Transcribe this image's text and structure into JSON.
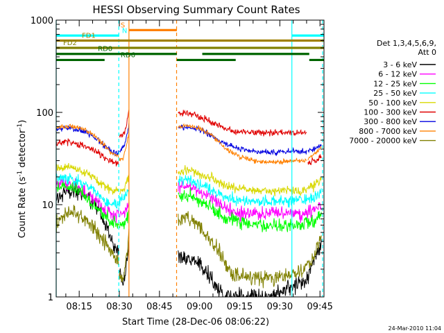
{
  "chart_data": {
    "type": "line",
    "title": "HESSI Observing Summary Count Rates",
    "xlabel": "Start Time (28-Dec-06 08:06:22)",
    "ylabel_parts": [
      "Count Rate (s",
      "-1",
      " detector",
      "-1",
      ")"
    ],
    "yscale": "log",
    "ylim": [
      1,
      1000
    ],
    "xlim_minutes": [
      486.4,
      586.5
    ],
    "x_ticks": [
      {
        "label": "08:15",
        "min": 495
      },
      {
        "label": "08:30",
        "min": 510
      },
      {
        "label": "08:45",
        "min": 525
      },
      {
        "label": "09:00",
        "min": 540
      },
      {
        "label": "09:15",
        "min": 555
      },
      {
        "label": "09:30",
        "min": 570
      },
      {
        "label": "09:45",
        "min": 585
      }
    ],
    "y_ticks": [
      {
        "label": "1",
        "value": 1
      },
      {
        "label": "10",
        "value": 10
      },
      {
        "label": "100",
        "value": 100
      },
      {
        "label": "1000",
        "value": 1000
      }
    ],
    "timestamp": "24-Mar-2010 11:04",
    "legend": {
      "placement": "right",
      "header": [
        "Det 1,3,4,5,6,9,",
        "Att 0"
      ],
      "entries": [
        {
          "label": "3 - 6 keV",
          "color": "#000000"
        },
        {
          "label": "6 - 12 keV",
          "color": "#ff00ff"
        },
        {
          "label": "12 - 25 keV",
          "color": "#00ff00"
        },
        {
          "label": "25 - 50 keV",
          "color": "#00ffff"
        },
        {
          "label": "50 - 100 keV",
          "color": "#d8d800"
        },
        {
          "label": "100 - 300 keV",
          "color": "#e00000"
        },
        {
          "label": "300 - 800 keV",
          "color": "#0000e0"
        },
        {
          "label": "800 - 7000 keV",
          "color": "#ff8000"
        },
        {
          "label": "7000 - 20000 keV",
          "color": "#808000"
        }
      ]
    },
    "flag_bars": [
      {
        "label": "N",
        "color": "#00ffff",
        "y": 680,
        "segments": [
          [
            486.4,
            510
          ],
          [
            574.5,
            586.5
          ]
        ],
        "label_at": 511
      },
      {
        "label": "S",
        "color": "#ff8000",
        "y": 780,
        "segments": [
          [
            513.5,
            531.5
          ]
        ],
        "label_at": 510.5
      },
      {
        "label": "FD1",
        "color": "#a08000",
        "y": 600,
        "segments": [
          [
            486.4,
            586.5
          ]
        ],
        "label_at": 496
      },
      {
        "label": "FD2",
        "color": "#808000",
        "y": 500,
        "segments": [
          [
            486.4,
            586.5
          ]
        ],
        "label_at": 489
      },
      {
        "label": "RD0",
        "color": "#006400",
        "y": 430,
        "segments": [
          [
            486.4,
            531.5
          ],
          [
            541,
            581
          ]
        ],
        "label_at": 502
      },
      {
        "label": "RD6",
        "color": "#006400",
        "y": 370,
        "segments": [
          [
            486.4,
            504.5
          ],
          [
            531.5,
            553.5
          ],
          [
            581,
            586.5
          ]
        ],
        "label_at": 510.5
      }
    ],
    "vlines": [
      {
        "min": 486.4,
        "color": "#00ffff",
        "style": "solid"
      },
      {
        "min": 509.8,
        "color": "#00ffff",
        "style": "dashed"
      },
      {
        "min": 513.6,
        "color": "#ff8000",
        "style": "solid"
      },
      {
        "min": 531.4,
        "color": "#ff8000",
        "style": "dashed"
      },
      {
        "min": 574.5,
        "color": "#00ffff",
        "style": "solid"
      },
      {
        "min": 586.0,
        "color": "#00ffff",
        "style": "dashed"
      }
    ],
    "segments": [
      {
        "start": 486.5,
        "end": 509.8
      },
      {
        "start": 510.0,
        "end": 513.6
      },
      {
        "start": 532.0,
        "end": 585.5
      }
    ],
    "series": [
      {
        "name": "3 - 6 keV",
        "color": "#000000",
        "noise": 0.08,
        "segments": [
          [
            [
              486.5,
              12
            ],
            [
              490,
              14
            ],
            [
              494,
              14
            ],
            [
              498,
              12
            ],
            [
              502,
              9
            ],
            [
              505,
              6
            ],
            [
              507,
              4
            ],
            [
              509.8,
              3
            ]
          ],
          [
            [
              510.0,
              1.8
            ],
            [
              511.5,
              1.5
            ],
            [
              513.0,
              2.5
            ],
            [
              513.6,
              4
            ]
          ],
          [
            [
              532.0,
              3
            ],
            [
              535,
              2.7
            ],
            [
              538,
              2.4
            ],
            [
              541,
              2.2
            ],
            [
              544,
              1.6
            ],
            [
              547,
              1.2
            ],
            [
              550,
              1.0
            ],
            [
              566,
              1.0
            ],
            [
              572,
              1.2
            ],
            [
              580,
              1.6
            ],
            [
              583,
              2.5
            ],
            [
              585.5,
              3.5
            ]
          ]
        ]
      },
      {
        "name": "6 - 12 keV",
        "color": "#ff00ff",
        "noise": 0.06,
        "segments": [
          [
            [
              486.5,
              16
            ],
            [
              490,
              17
            ],
            [
              495,
              15
            ],
            [
              500,
              12
            ],
            [
              504,
              9
            ],
            [
              507,
              8
            ],
            [
              509.8,
              8
            ]
          ],
          [
            [
              510.0,
              8
            ],
            [
              512,
              8
            ],
            [
              513.6,
              10
            ]
          ],
          [
            [
              532.0,
              16
            ],
            [
              535,
              16
            ],
            [
              540,
              14
            ],
            [
              545,
              11
            ],
            [
              550,
              9
            ],
            [
              555,
              8
            ],
            [
              560,
              8
            ],
            [
              570,
              8
            ],
            [
              578,
              8
            ],
            [
              583,
              9
            ],
            [
              585.5,
              10
            ]
          ]
        ]
      },
      {
        "name": "12 - 25 keV",
        "color": "#00ff00",
        "noise": 0.06,
        "segments": [
          [
            [
              486.5,
              15
            ],
            [
              490,
              16
            ],
            [
              495,
              14
            ],
            [
              500,
              10
            ],
            [
              504,
              8
            ],
            [
              507,
              6.5
            ],
            [
              509.8,
              6
            ]
          ],
          [
            [
              510.0,
              6
            ],
            [
              512,
              6
            ],
            [
              513.6,
              8
            ]
          ],
          [
            [
              532.0,
              12
            ],
            [
              535,
              13
            ],
            [
              540,
              11
            ],
            [
              545,
              9
            ],
            [
              550,
              7
            ],
            [
              555,
              6.5
            ],
            [
              560,
              6
            ],
            [
              570,
              6
            ],
            [
              578,
              6
            ],
            [
              583,
              7
            ],
            [
              585.5,
              8
            ]
          ]
        ]
      },
      {
        "name": "25 - 50 keV",
        "color": "#00ffff",
        "noise": 0.05,
        "segments": [
          [
            [
              486.5,
              19
            ],
            [
              490,
              20
            ],
            [
              495,
              18
            ],
            [
              500,
              15
            ],
            [
              504,
              11
            ],
            [
              507,
              10
            ],
            [
              509.8,
              10
            ]
          ],
          [
            [
              510.0,
              11
            ],
            [
              512,
              12
            ],
            [
              513.6,
              15
            ]
          ],
          [
            [
              532.0,
              18
            ],
            [
              535,
              19
            ],
            [
              540,
              17
            ],
            [
              545,
              14
            ],
            [
              550,
              12
            ],
            [
              555,
              11
            ],
            [
              560,
              11
            ],
            [
              570,
              11
            ],
            [
              578,
              11
            ],
            [
              583,
              12
            ],
            [
              585.5,
              14
            ]
          ]
        ]
      },
      {
        "name": "50 - 100 keV",
        "color": "#d8d800",
        "noise": 0.04,
        "segments": [
          [
            [
              486.5,
              24
            ],
            [
              490,
              26
            ],
            [
              495,
              24
            ],
            [
              500,
              20
            ],
            [
              504,
              16
            ],
            [
              507,
              14
            ],
            [
              509.8,
              14
            ]
          ],
          [
            [
              510.0,
              14
            ],
            [
              512,
              15
            ],
            [
              513.6,
              20
            ]
          ],
          [
            [
              532.0,
              22
            ],
            [
              535,
              24
            ],
            [
              540,
              22
            ],
            [
              545,
              19
            ],
            [
              550,
              16
            ],
            [
              555,
              15
            ],
            [
              560,
              14
            ],
            [
              570,
              14
            ],
            [
              578,
              14
            ],
            [
              583,
              16
            ],
            [
              585.5,
              18
            ]
          ]
        ]
      },
      {
        "name": "100 - 300 keV",
        "color": "#e00000",
        "noise": 0.03,
        "segments": [
          [
            [
              486.5,
              45
            ],
            [
              490,
              48
            ],
            [
              495,
              45
            ],
            [
              500,
              40
            ],
            [
              504,
              33
            ],
            [
              507,
              29
            ],
            [
              509.8,
              28
            ]
          ],
          [
            [
              510.0,
              55
            ],
            [
              511.5,
              58
            ],
            [
              512.8,
              75
            ],
            [
              513.6,
              110
            ]
          ],
          [
            [
              532.0,
              95
            ],
            [
              535,
              97
            ],
            [
              540,
              90
            ],
            [
              545,
              78
            ],
            [
              550,
              65
            ],
            [
              555,
              62
            ],
            [
              560,
              60
            ],
            [
              565,
              60
            ],
            [
              570,
              60
            ],
            [
              576,
              60
            ],
            [
              580,
              60
            ]
          ],
          [
            [
              580.5,
              28
            ],
            [
              583,
              30
            ],
            [
              585.5,
              33
            ]
          ]
        ]
      },
      {
        "name": "300 - 800 keV",
        "color": "#0000e0",
        "noise": 0.025,
        "segments": [
          [
            [
              486.5,
              65
            ],
            [
              490,
              68
            ],
            [
              495,
              65
            ],
            [
              500,
              55
            ],
            [
              504,
              45
            ],
            [
              507,
              38
            ],
            [
              509.8,
              36
            ]
          ],
          [
            [
              510.0,
              38
            ],
            [
              511.5,
              42
            ],
            [
              512.8,
              55
            ],
            [
              513.6,
              75
            ]
          ],
          [
            [
              532.0,
              68
            ],
            [
              535,
              70
            ],
            [
              540,
              65
            ],
            [
              545,
              55
            ],
            [
              550,
              45
            ],
            [
              555,
              40
            ],
            [
              560,
              38
            ],
            [
              565,
              37
            ],
            [
              570,
              37
            ],
            [
              576,
              38
            ],
            [
              580,
              38
            ]
          ],
          [
            [
              580.5,
              38
            ],
            [
              583,
              40
            ],
            [
              585.5,
              44
            ]
          ]
        ]
      },
      {
        "name": "800 - 7000 keV",
        "color": "#ff8000",
        "noise": 0.02,
        "segments": [
          [
            [
              486.5,
              68
            ],
            [
              490,
              71
            ],
            [
              495,
              68
            ],
            [
              500,
              58
            ],
            [
              504,
              45
            ],
            [
              507,
              36
            ],
            [
              509.8,
              33
            ]
          ],
          [
            [
              510.0,
              30
            ],
            [
              511.5,
              32
            ],
            [
              512.8,
              45
            ],
            [
              513.6,
              60
            ]
          ],
          [
            [
              532.0,
              68
            ],
            [
              535,
              72
            ],
            [
              540,
              68
            ],
            [
              545,
              55
            ],
            [
              550,
              40
            ],
            [
              555,
              33
            ],
            [
              560,
              30
            ],
            [
              565,
              29
            ],
            [
              570,
              29
            ],
            [
              576,
              30
            ],
            [
              580,
              30
            ]
          ],
          [
            [
              580.5,
              31
            ],
            [
              583,
              36
            ],
            [
              585.5,
              42
            ]
          ]
        ]
      },
      {
        "name": "7000 - 20000 keV",
        "color": "#808000",
        "noise": 0.07,
        "segments": [
          [
            [
              486.5,
              6
            ],
            [
              490,
              8
            ],
            [
              494,
              8
            ],
            [
              498,
              6.5
            ],
            [
              502,
              5
            ],
            [
              505,
              3.8
            ],
            [
              507,
              3
            ],
            [
              509.8,
              2.5
            ]
          ],
          [
            [
              510.0,
              1.7
            ],
            [
              511.5,
              1.6
            ],
            [
              513.0,
              3
            ],
            [
              513.6,
              5
            ]
          ],
          [
            [
              532.0,
              7
            ],
            [
              535,
              7.5
            ],
            [
              538,
              6.5
            ],
            [
              542,
              5
            ],
            [
              546,
              3.5
            ],
            [
              549,
              2.5
            ],
            [
              552,
              1.8
            ],
            [
              560,
              1.6
            ],
            [
              570,
              1.6
            ],
            [
              578,
              1.9
            ],
            [
              582,
              2.5
            ],
            [
              585.5,
              4.5
            ]
          ]
        ]
      }
    ]
  }
}
